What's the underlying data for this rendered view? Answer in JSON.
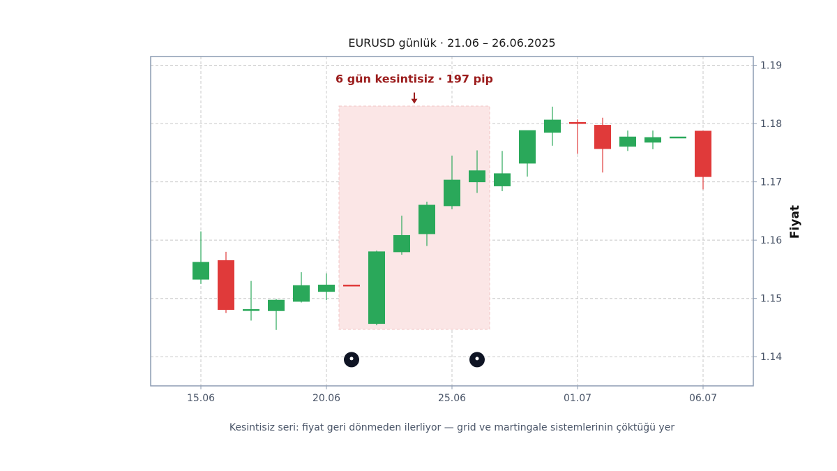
{
  "chart_data": {
    "type": "candlestick",
    "title": "EURUSD günlük · 21.06 – 26.06.2025",
    "ylabel": "Fiyat",
    "xlabel": "",
    "caption": "Kesintisiz seri: fiyat geri dönmeden ilerliyor — grid ve martingale sistemlerinin çöktüğü yer",
    "x_ticks": [
      {
        "index": 0,
        "label": "15.06"
      },
      {
        "index": 5,
        "label": "20.06"
      },
      {
        "index": 10,
        "label": "25.06"
      },
      {
        "index": 15,
        "label": "01.07"
      },
      {
        "index": 20,
        "label": "06.07"
      }
    ],
    "y_ticks": [
      1.14,
      1.15,
      1.16,
      1.17,
      1.18,
      1.19
    ],
    "y_tick_labels": [
      "1.14",
      "1.15",
      "1.16",
      "1.17",
      "1.18",
      "1.19"
    ],
    "xlim": [
      -2,
      22
    ],
    "ylim": [
      1.135,
      1.1915
    ],
    "grid": true,
    "y_axis_side": "right",
    "candles": [
      {
        "index": 0,
        "open": 1.1533,
        "high": 1.1615,
        "low": 1.1525,
        "close": 1.1562
      },
      {
        "index": 1,
        "open": 1.1565,
        "high": 1.158,
        "low": 1.1475,
        "close": 1.1481
      },
      {
        "index": 2,
        "open": 1.1481,
        "high": 1.153,
        "low": 1.1462,
        "close": 1.1481
      },
      {
        "index": 3,
        "open": 1.1479,
        "high": 1.1499,
        "low": 1.1446,
        "close": 1.1497
      },
      {
        "index": 4,
        "open": 1.1495,
        "high": 1.1545,
        "low": 1.1493,
        "close": 1.1522
      },
      {
        "index": 5,
        "open": 1.1512,
        "high": 1.1543,
        "low": 1.1497,
        "close": 1.1523
      },
      {
        "index": 6,
        "open": 1.1523,
        "high": 1.1523,
        "low": 1.1522,
        "close": 1.1522
      },
      {
        "index": 7,
        "open": 1.1457,
        "high": 1.1582,
        "low": 1.1454,
        "close": 1.158
      },
      {
        "index": 8,
        "open": 1.158,
        "high": 1.1642,
        "low": 1.1575,
        "close": 1.1608
      },
      {
        "index": 9,
        "open": 1.1611,
        "high": 1.1666,
        "low": 1.159,
        "close": 1.166
      },
      {
        "index": 10,
        "open": 1.1659,
        "high": 1.1745,
        "low": 1.1653,
        "close": 1.1703
      },
      {
        "index": 11,
        "open": 1.17,
        "high": 1.1754,
        "low": 1.1681,
        "close": 1.1719
      },
      {
        "index": 12,
        "open": 1.1693,
        "high": 1.1753,
        "low": 1.1684,
        "close": 1.1714
      },
      {
        "index": 13,
        "open": 1.1732,
        "high": 1.1788,
        "low": 1.1709,
        "close": 1.1788
      },
      {
        "index": 14,
        "open": 1.1785,
        "high": 1.1829,
        "low": 1.1762,
        "close": 1.1806
      },
      {
        "index": 15,
        "open": 1.1802,
        "high": 1.1807,
        "low": 1.1748,
        "close": 1.18
      },
      {
        "index": 16,
        "open": 1.1797,
        "high": 1.181,
        "low": 1.1716,
        "close": 1.1757
      },
      {
        "index": 17,
        "open": 1.1761,
        "high": 1.1788,
        "low": 1.1753,
        "close": 1.1777
      },
      {
        "index": 18,
        "open": 1.1768,
        "high": 1.1788,
        "low": 1.1756,
        "close": 1.1776
      },
      {
        "index": 19,
        "open": 1.1777,
        "high": 1.1777,
        "low": 1.1777,
        "close": 1.1777
      },
      {
        "index": 20,
        "open": 1.1787,
        "high": 1.1787,
        "low": 1.1687,
        "close": 1.1709
      }
    ],
    "highlight": {
      "x_start": 5.5,
      "x_end": 11.5,
      "y_low": 1.1447,
      "y_high": 1.183
    },
    "annotation": {
      "text": "6 gün kesintisiz · 197 pip",
      "x": 8.5,
      "y": 1.187,
      "arrow_to_y": 1.1834
    },
    "markers": [
      {
        "index": 6,
        "y": 1.1395
      },
      {
        "index": 11,
        "y": 1.1395
      }
    ],
    "colors": {
      "up": "#2aa85a",
      "down": "#e03a3a",
      "highlight_fill": "#fbe6e6",
      "highlight_border": "#f2c4c4",
      "annotation": "#9b1c1c",
      "marker": "#0f1424",
      "frame": "#8c9bb2",
      "grid": "#c8c8c8"
    }
  }
}
